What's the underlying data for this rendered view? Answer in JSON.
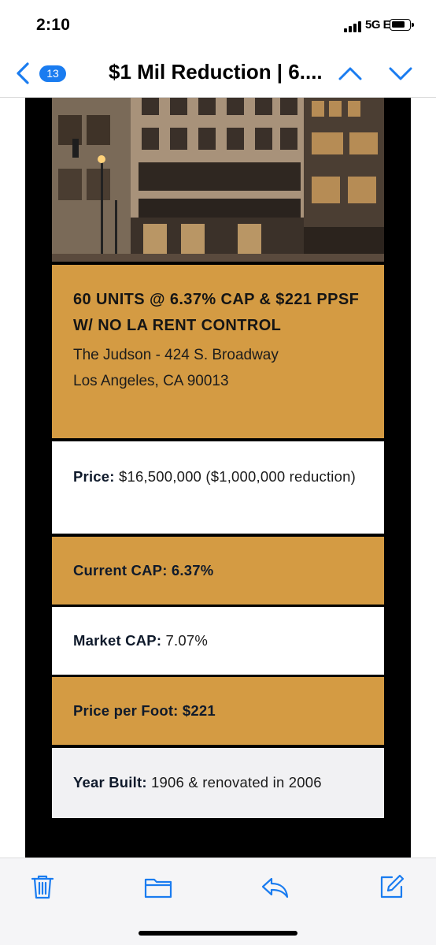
{
  "status_bar": {
    "time": "2:10",
    "network": "5G E",
    "icons": [
      "signal-icon",
      "battery-icon"
    ]
  },
  "nav": {
    "unread_count": "13",
    "title": "$1 Mil Reduction | 6....",
    "icons": [
      "back-chevron-icon",
      "chevron-up-icon",
      "chevron-down-icon"
    ],
    "accent_color": "#1a7cf0"
  },
  "email": {
    "headline": "60 UNITS @ 6.37% CAP & $221 PPSF W/ NO LA RENT CONTROL",
    "address_line1": "The Judson - 424 S. Broadway",
    "address_line2": "Los Angeles, CA 90013",
    "price_label": "Price:",
    "price_value": " $16,500,000 ($1,000,000 reduction)",
    "current_cap": "Current CAP: 6.37%",
    "market_cap_label": "Market CAP:",
    "market_cap_value": " 7.07%",
    "price_per_foot": "Price per Foot: $221",
    "year_built_label": "Year Built:",
    "year_built_value": " 1906 & renovated in 2006",
    "gold_color": "#d49b43"
  },
  "toolbar": {
    "icons": [
      "trash-icon",
      "folder-icon",
      "reply-icon",
      "compose-icon"
    ]
  }
}
